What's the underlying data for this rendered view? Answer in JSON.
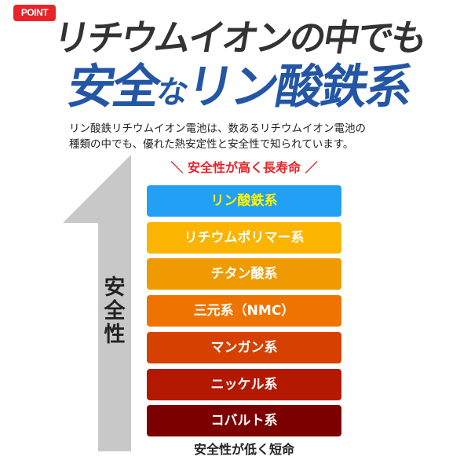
{
  "badge": "POINT",
  "title": {
    "line1": "リチウムイオンの中でも",
    "line2_a": "安全",
    "line2_b": "な",
    "line2_c": "リン酸鉄系"
  },
  "description": [
    "リン酸鉄リチウムイオン電池は、数あるリチウムイオン電池の",
    "種類の中でも、優れた熱安定性と安全性で知られています。"
  ],
  "axis_label": "安全性",
  "top_label": "＼ 安全性が高く長寿命 ／",
  "bottom_label": "安全性が低く短命",
  "arrow_color": "#c8c8c8",
  "items": [
    {
      "label": "リン酸鉄系",
      "color": "#22a0f5",
      "text_color": "#fff200"
    },
    {
      "label": "リチウムポリマー系",
      "color": "#fbb400",
      "text_color": "#ffffff"
    },
    {
      "label": "チタン酸系",
      "color": "#ef9a00",
      "text_color": "#ffffff"
    },
    {
      "label": "三元系（NMC）",
      "color": "#ef7300",
      "text_color": "#ffffff"
    },
    {
      "label": "マンガン系",
      "color": "#d64000",
      "text_color": "#ffffff"
    },
    {
      "label": "ニッケル系",
      "color": "#b41800",
      "text_color": "#ffffff"
    },
    {
      "label": "コバルト系",
      "color": "#7d0000",
      "text_color": "#ffffff"
    }
  ]
}
